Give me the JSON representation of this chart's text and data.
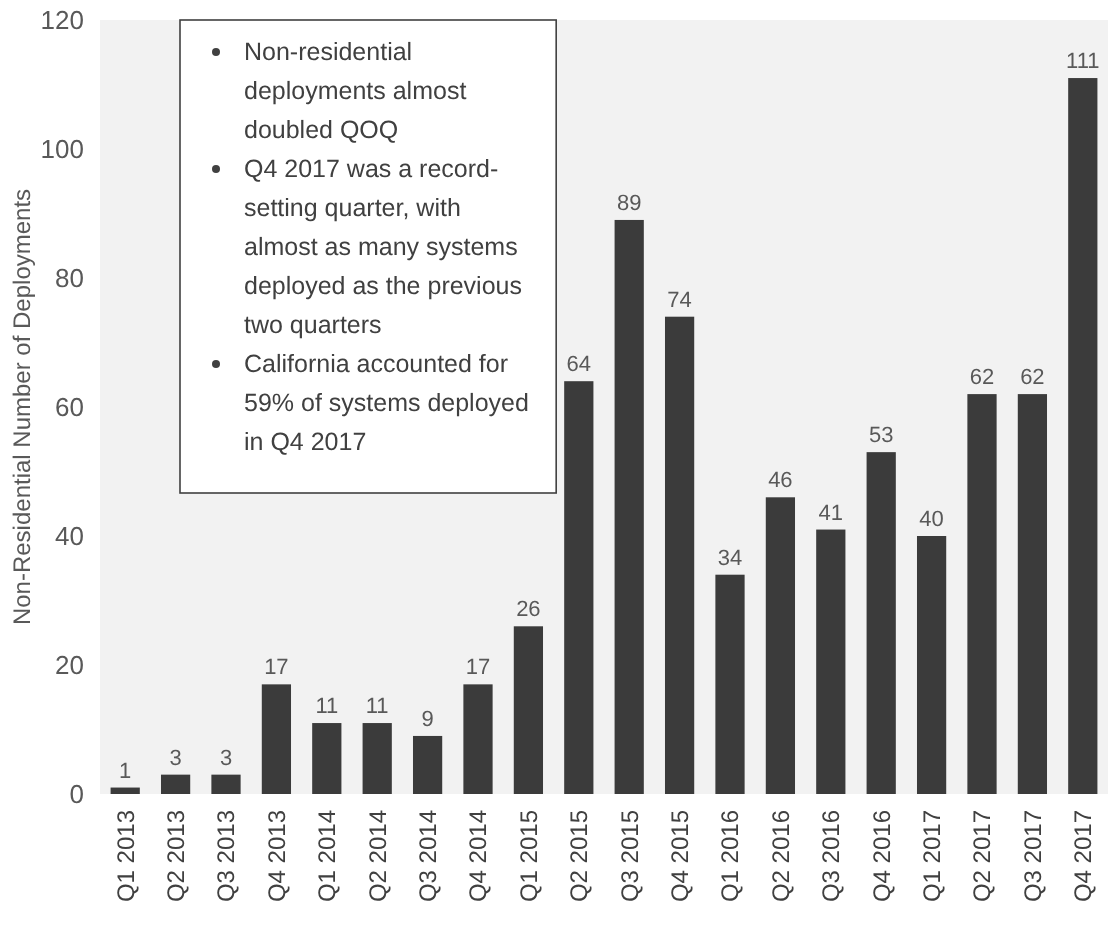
{
  "chart_data": {
    "type": "bar",
    "ylabel": "Non-Residential Number of Deployments",
    "categories": [
      "Q1 2013",
      "Q2 2013",
      "Q3 2013",
      "Q4 2013",
      "Q1 2014",
      "Q2 2014",
      "Q3 2014",
      "Q4 2014",
      "Q1 2015",
      "Q2 2015",
      "Q3 2015",
      "Q4 2015",
      "Q1 2016",
      "Q2 2016",
      "Q3 2016",
      "Q4 2016",
      "Q1 2017",
      "Q2 2017",
      "Q3 2017",
      "Q4 2017"
    ],
    "values": [
      1,
      3,
      3,
      17,
      11,
      11,
      9,
      17,
      26,
      64,
      89,
      74,
      34,
      46,
      41,
      53,
      40,
      62,
      62,
      111
    ],
    "color": "#3b3b3b",
    "ylim": [
      0,
      120
    ],
    "yticks": [
      0,
      20,
      40,
      60,
      80,
      100,
      120
    ],
    "data_labels": true,
    "annotations": [
      "Non-residential deployments almost doubled QOQ",
      "Q4 2017 was a record-setting quarter, with almost as many systems deployed as the previous two quarters",
      "California accounted for 59% of systems deployed in Q4 2017"
    ]
  }
}
